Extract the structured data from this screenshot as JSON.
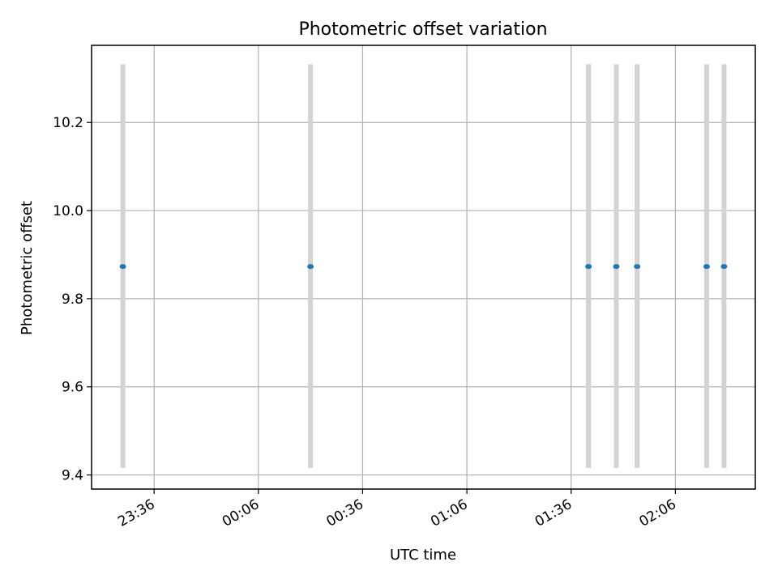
{
  "chart_data": {
    "type": "scatter",
    "title": "Photometric offset variation",
    "xlabel": "UTC time",
    "ylabel": "Photometric offset",
    "x_axis": {
      "type": "time",
      "domain": [
        "23:18",
        "02:29"
      ],
      "ticks": [
        "23:36",
        "00:06",
        "00:36",
        "01:06",
        "01:36",
        "02:06"
      ]
    },
    "y_axis": {
      "domain": [
        9.368,
        10.375
      ],
      "ticks": [
        "9.4",
        "9.6",
        "9.8",
        "10.0",
        "10.2"
      ]
    },
    "grid": true,
    "colors": {
      "points": "#1f77b4",
      "error_bars": "#d3d3d3",
      "grid": "#b0b0b0"
    },
    "points": [
      {
        "x": "23:27",
        "y": 9.873,
        "ylow": 9.416,
        "yhigh": 10.332
      },
      {
        "x": "00:21",
        "y": 9.873,
        "ylow": 9.416,
        "yhigh": 10.332
      },
      {
        "x": "01:41",
        "y": 9.873,
        "ylow": 9.416,
        "yhigh": 10.332
      },
      {
        "x": "01:41",
        "y": 9.873,
        "ylow": 9.416,
        "yhigh": 10.332
      },
      {
        "x": "01:49",
        "y": 9.873,
        "ylow": 9.416,
        "yhigh": 10.332
      },
      {
        "x": "01:55",
        "y": 9.873,
        "ylow": 9.416,
        "yhigh": 10.332
      },
      {
        "x": "02:15",
        "y": 9.873,
        "ylow": 9.416,
        "yhigh": 10.332
      },
      {
        "x": "02:20",
        "y": 9.873,
        "ylow": 9.416,
        "yhigh": 10.332
      }
    ]
  }
}
